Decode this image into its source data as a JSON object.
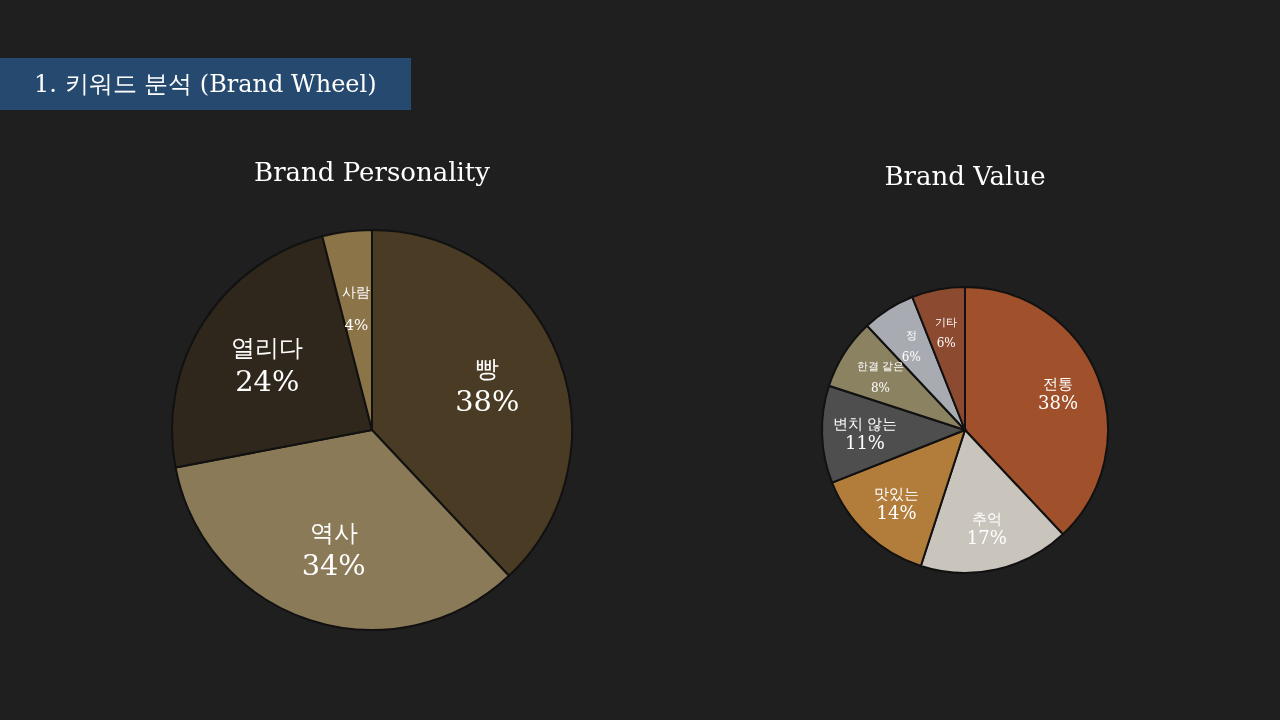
{
  "chart_data": [
    {
      "type": "pie",
      "title": "Brand Personality",
      "annotations": [
        "1. 키워드 분석 (Brand Wheel)"
      ],
      "categories": [
        "빵",
        "역사",
        "열리다",
        "사람"
      ],
      "values": [
        38,
        34,
        24,
        4
      ],
      "value_labels": [
        "38%",
        "34%",
        "24%",
        "4%"
      ],
      "colors": [
        "#4a3b24",
        "#8a7a58",
        "#2f271b",
        "#8c7449"
      ]
    },
    {
      "type": "pie",
      "title": "Brand Value",
      "categories": [
        "전통",
        "추억",
        "맛있는",
        "변치 않는",
        "한결 같은",
        "정",
        "기타"
      ],
      "values": [
        38,
        17,
        14,
        11,
        8,
        6,
        6
      ],
      "value_labels": [
        "38%",
        "17%",
        "14%",
        "11%",
        "8%",
        "6%",
        "6%"
      ],
      "colors": [
        "#a0502a",
        "#c9c5bd",
        "#b27c3a",
        "#4e4e4e",
        "#8b8262",
        "#a9abb2",
        "#8c4b30"
      ]
    }
  ]
}
